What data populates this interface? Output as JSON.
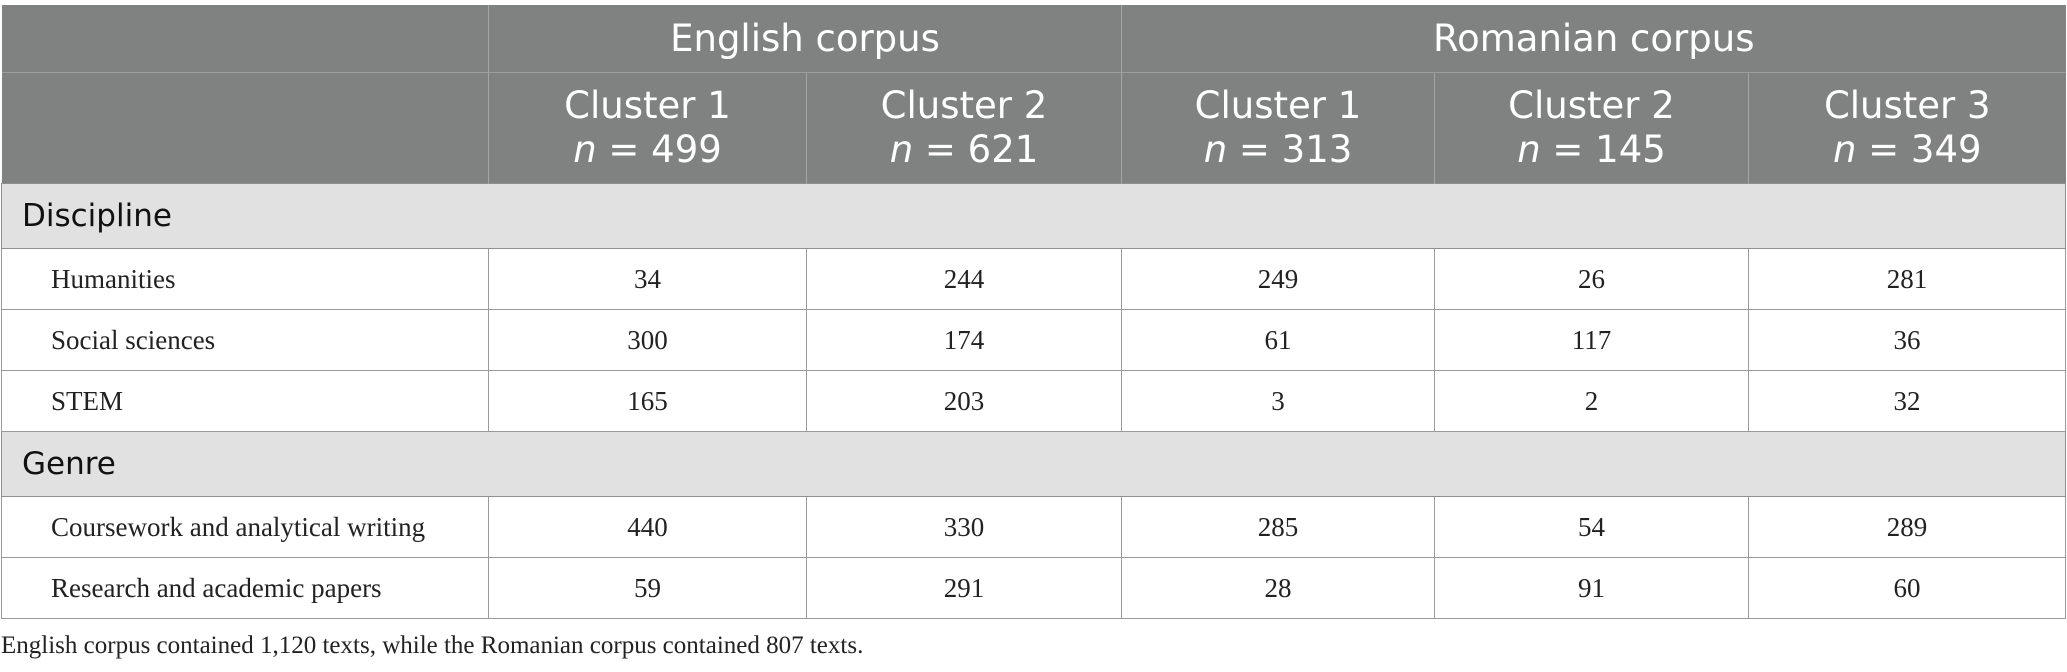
{
  "header": {
    "groups": [
      "English corpus",
      "Romanian corpus"
    ],
    "clusters": [
      {
        "label": "Cluster 1",
        "n_prefix": "n",
        "n_value": " = 499"
      },
      {
        "label": "Cluster 2",
        "n_prefix": "n",
        "n_value": " = 621"
      },
      {
        "label": "Cluster 1",
        "n_prefix": "n",
        "n_value": " = 313"
      },
      {
        "label": "Cluster 2",
        "n_prefix": "n",
        "n_value": " = 145"
      },
      {
        "label": "Cluster 3",
        "n_prefix": "n",
        "n_value": " = 349"
      }
    ]
  },
  "sections": [
    {
      "title": "Discipline",
      "rows": [
        {
          "label": "Humanities",
          "values": [
            "34",
            "244",
            "249",
            "26",
            "281"
          ]
        },
        {
          "label": "Social sciences",
          "values": [
            "300",
            "174",
            "61",
            "117",
            "36"
          ]
        },
        {
          "label": "STEM",
          "values": [
            "165",
            "203",
            "3",
            "2",
            "32"
          ]
        }
      ]
    },
    {
      "title": "Genre",
      "rows": [
        {
          "label": "Coursework and analytical writing",
          "values": [
            "440",
            "330",
            "285",
            "54",
            "289"
          ]
        },
        {
          "label": "Research and academic papers",
          "values": [
            "59",
            "291",
            "28",
            "91",
            "60"
          ]
        }
      ]
    }
  ],
  "note": "English corpus contained 1,120 texts, while the Romanian corpus contained 807 texts.",
  "colors": {
    "header_bg": "#808281",
    "section_bg": "#e2e1e2"
  }
}
